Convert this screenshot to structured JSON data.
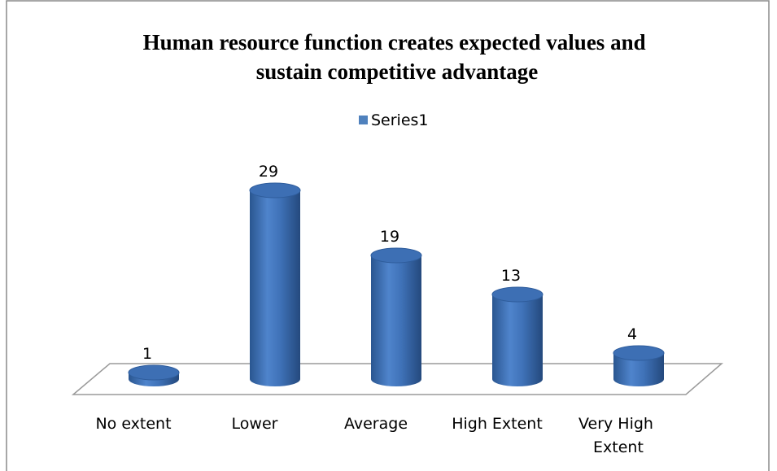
{
  "chart_data": {
    "type": "bar3d",
    "title": "Human resource function creates expected values and sustain competitive advantage",
    "categories": [
      "No extent",
      "Lower",
      "Average",
      "High Extent",
      "Very High Extent"
    ],
    "series": [
      {
        "name": "Series1",
        "color": "#4f81bd",
        "values": [
          1,
          29,
          19,
          13,
          4
        ]
      }
    ],
    "ylim": [
      0,
      35
    ],
    "legend": "top"
  }
}
